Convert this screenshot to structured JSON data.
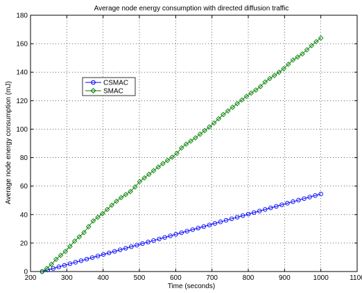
{
  "chart_data": {
    "type": "line",
    "title": "Average node energy consumption with directed diffusion traffic",
    "xlabel": "Time (seconds)",
    "ylabel": "Average node energy consumption (mJ)",
    "xlim": [
      200,
      1100
    ],
    "ylim": [
      0,
      180
    ],
    "xticks": [
      200,
      300,
      400,
      500,
      600,
      700,
      800,
      900,
      1000,
      1100
    ],
    "yticks": [
      0,
      20,
      40,
      60,
      80,
      100,
      120,
      140,
      160,
      180
    ],
    "grid": true,
    "legend_position": "upper-left",
    "series": [
      {
        "name": "CSMAC",
        "color": "#0000ff",
        "marker": "circle",
        "start": [
          232,
          0
        ],
        "end": [
          1000,
          54.5
        ]
      },
      {
        "name": "SMAC",
        "color": "#008000",
        "marker": "diamond",
        "points": [
          [
            232,
            0
          ],
          [
            250,
            3
          ],
          [
            270,
            8.5
          ],
          [
            300,
            15
          ],
          [
            320,
            21
          ],
          [
            350,
            28
          ],
          [
            370,
            35
          ],
          [
            400,
            41
          ],
          [
            430,
            48
          ],
          [
            450,
            52
          ],
          [
            480,
            57
          ],
          [
            500,
            63
          ],
          [
            530,
            69
          ],
          [
            560,
            75
          ],
          [
            600,
            82
          ],
          [
            620,
            88
          ],
          [
            650,
            93
          ],
          [
            680,
            99
          ],
          [
            700,
            103
          ],
          [
            730,
            110
          ],
          [
            760,
            116
          ],
          [
            800,
            124
          ],
          [
            830,
            129
          ],
          [
            850,
            134
          ],
          [
            880,
            139
          ],
          [
            900,
            143
          ],
          [
            920,
            148
          ],
          [
            950,
            153
          ],
          [
            980,
            160
          ],
          [
            1000,
            164
          ]
        ]
      }
    ]
  }
}
